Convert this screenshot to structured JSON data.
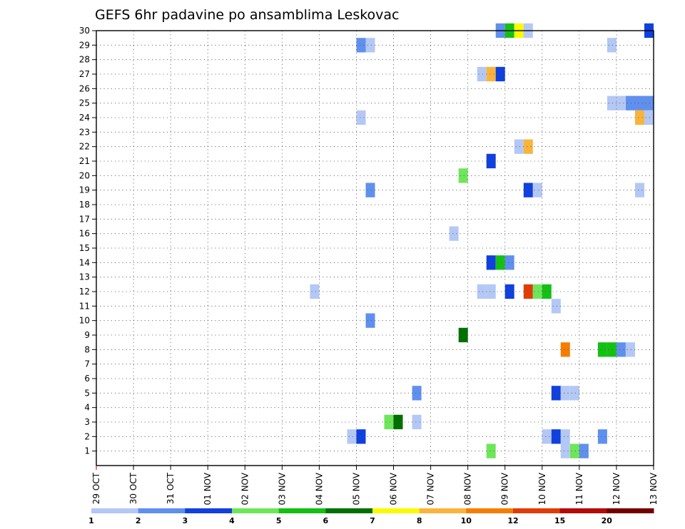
{
  "chart_data": {
    "type": "heatmap",
    "title": "GEFS 6hr padavine po ansamblima Leskovac",
    "xlabel": "",
    "ylabel": "",
    "x_ticks": [
      "29 OCT",
      "30 OCT",
      "31 OCT",
      "01 NOV",
      "02 NOV",
      "03 NOV",
      "04 NOV",
      "05 NOV",
      "06 NOV",
      "07 NOV",
      "08 NOV",
      "09 NOV",
      "10 NOV",
      "11 NOV",
      "12 NOV",
      "13 NOV"
    ],
    "xlim": [
      "29 OCT 00Z",
      "13 NOV 00Z"
    ],
    "time_step_hours": 6,
    "y_ticks": [
      1,
      2,
      3,
      4,
      5,
      6,
      7,
      8,
      9,
      10,
      11,
      12,
      13,
      14,
      15,
      16,
      17,
      18,
      19,
      20,
      21,
      22,
      23,
      24,
      25,
      26,
      27,
      28,
      29,
      30
    ],
    "ylim": [
      0,
      30
    ],
    "grid": true,
    "legend": {
      "position": "bottom",
      "levels": [
        "1",
        "2",
        "3",
        "4",
        "5",
        "6",
        "7",
        "8",
        "10",
        "12",
        "15",
        "20"
      ],
      "colors": [
        "#b4c8f5",
        "#6090ee",
        "#1040dd",
        "#6ee65a",
        "#14c014",
        "#007000",
        "#fafa00",
        "#fab43c",
        "#f57d00",
        "#e03c0a",
        "#b40a0a",
        "#730000"
      ]
    },
    "cells": [
      {
        "member": 30,
        "time": "08 NOV 18Z",
        "color": "#6090ee"
      },
      {
        "member": 30,
        "time": "09 NOV 00Z",
        "color": "#14c014"
      },
      {
        "member": 30,
        "time": "09 NOV 06Z",
        "color": "#fafa00"
      },
      {
        "member": 30,
        "time": "09 NOV 12Z",
        "color": "#b4c8f5"
      },
      {
        "member": 30,
        "time": "12 NOV 18Z",
        "color": "#1040dd"
      },
      {
        "member": 29,
        "time": "05 NOV 00Z",
        "color": "#6090ee"
      },
      {
        "member": 29,
        "time": "05 NOV 06Z",
        "color": "#b4c8f5"
      },
      {
        "member": 29,
        "time": "11 NOV 18Z",
        "color": "#b4c8f5"
      },
      {
        "member": 27,
        "time": "08 NOV 06Z",
        "color": "#b4c8f5"
      },
      {
        "member": 27,
        "time": "08 NOV 12Z",
        "color": "#fab43c"
      },
      {
        "member": 27,
        "time": "08 NOV 18Z",
        "color": "#1040dd"
      },
      {
        "member": 25,
        "time": "11 NOV 18Z",
        "color": "#b4c8f5"
      },
      {
        "member": 25,
        "time": "12 NOV 00Z",
        "color": "#b4c8f5"
      },
      {
        "member": 25,
        "time": "12 NOV 06Z",
        "color": "#6090ee"
      },
      {
        "member": 25,
        "time": "12 NOV 12Z",
        "color": "#6090ee"
      },
      {
        "member": 25,
        "time": "12 NOV 18Z",
        "color": "#6090ee"
      },
      {
        "member": 24,
        "time": "05 NOV 00Z",
        "color": "#b4c8f5"
      },
      {
        "member": 24,
        "time": "12 NOV 12Z",
        "color": "#fab43c"
      },
      {
        "member": 24,
        "time": "12 NOV 18Z",
        "color": "#b4c8f5"
      },
      {
        "member": 22,
        "time": "09 NOV 06Z",
        "color": "#b4c8f5"
      },
      {
        "member": 22,
        "time": "09 NOV 12Z",
        "color": "#fab43c"
      },
      {
        "member": 21,
        "time": "08 NOV 12Z",
        "color": "#1040dd"
      },
      {
        "member": 20,
        "time": "07 NOV 18Z",
        "color": "#6ee65a"
      },
      {
        "member": 19,
        "time": "05 NOV 06Z",
        "color": "#6090ee"
      },
      {
        "member": 19,
        "time": "09 NOV 12Z",
        "color": "#1040dd"
      },
      {
        "member": 19,
        "time": "09 NOV 18Z",
        "color": "#b4c8f5"
      },
      {
        "member": 19,
        "time": "12 NOV 12Z",
        "color": "#b4c8f5"
      },
      {
        "member": 16,
        "time": "07 NOV 12Z",
        "color": "#b4c8f5"
      },
      {
        "member": 14,
        "time": "08 NOV 12Z",
        "color": "#1040dd"
      },
      {
        "member": 14,
        "time": "08 NOV 18Z",
        "color": "#14c014"
      },
      {
        "member": 14,
        "time": "09 NOV 00Z",
        "color": "#6090ee"
      },
      {
        "member": 12,
        "time": "03 NOV 18Z",
        "color": "#b4c8f5"
      },
      {
        "member": 12,
        "time": "08 NOV 06Z",
        "color": "#b4c8f5"
      },
      {
        "member": 12,
        "time": "08 NOV 12Z",
        "color": "#b4c8f5"
      },
      {
        "member": 12,
        "time": "09 NOV 00Z",
        "color": "#1040dd"
      },
      {
        "member": 12,
        "time": "09 NOV 12Z",
        "color": "#e03c0a"
      },
      {
        "member": 12,
        "time": "09 NOV 18Z",
        "color": "#6ee65a"
      },
      {
        "member": 12,
        "time": "10 NOV 00Z",
        "color": "#14c014"
      },
      {
        "member": 11,
        "time": "10 NOV 06Z",
        "color": "#b4c8f5"
      },
      {
        "member": 10,
        "time": "05 NOV 06Z",
        "color": "#6090ee"
      },
      {
        "member": 9,
        "time": "07 NOV 18Z",
        "color": "#007000"
      },
      {
        "member": 8,
        "time": "10 NOV 12Z",
        "color": "#f57d00"
      },
      {
        "member": 8,
        "time": "11 NOV 12Z",
        "color": "#14c014"
      },
      {
        "member": 8,
        "time": "11 NOV 18Z",
        "color": "#14c014"
      },
      {
        "member": 8,
        "time": "12 NOV 00Z",
        "color": "#6090ee"
      },
      {
        "member": 8,
        "time": "12 NOV 06Z",
        "color": "#b4c8f5"
      },
      {
        "member": 5,
        "time": "06 NOV 12Z",
        "color": "#6090ee"
      },
      {
        "member": 5,
        "time": "10 NOV 06Z",
        "color": "#1040dd"
      },
      {
        "member": 5,
        "time": "10 NOV 12Z",
        "color": "#b4c8f5"
      },
      {
        "member": 5,
        "time": "10 NOV 18Z",
        "color": "#b4c8f5"
      },
      {
        "member": 3,
        "time": "05 NOV 18Z",
        "color": "#6ee65a"
      },
      {
        "member": 3,
        "time": "06 NOV 00Z",
        "color": "#007000"
      },
      {
        "member": 3,
        "time": "06 NOV 12Z",
        "color": "#b4c8f5"
      },
      {
        "member": 2,
        "time": "04 NOV 18Z",
        "color": "#b4c8f5"
      },
      {
        "member": 2,
        "time": "05 NOV 00Z",
        "color": "#1040dd"
      },
      {
        "member": 2,
        "time": "10 NOV 00Z",
        "color": "#b4c8f5"
      },
      {
        "member": 2,
        "time": "10 NOV 06Z",
        "color": "#1040dd"
      },
      {
        "member": 2,
        "time": "10 NOV 12Z",
        "color": "#b4c8f5"
      },
      {
        "member": 2,
        "time": "11 NOV 12Z",
        "color": "#6090ee"
      },
      {
        "member": 1,
        "time": "08 NOV 12Z",
        "color": "#6ee65a"
      },
      {
        "member": 1,
        "time": "10 NOV 12Z",
        "color": "#b4c8f5"
      },
      {
        "member": 1,
        "time": "10 NOV 18Z",
        "color": "#6ee65a"
      },
      {
        "member": 1,
        "time": "11 NOV 00Z",
        "color": "#6090ee"
      }
    ]
  }
}
